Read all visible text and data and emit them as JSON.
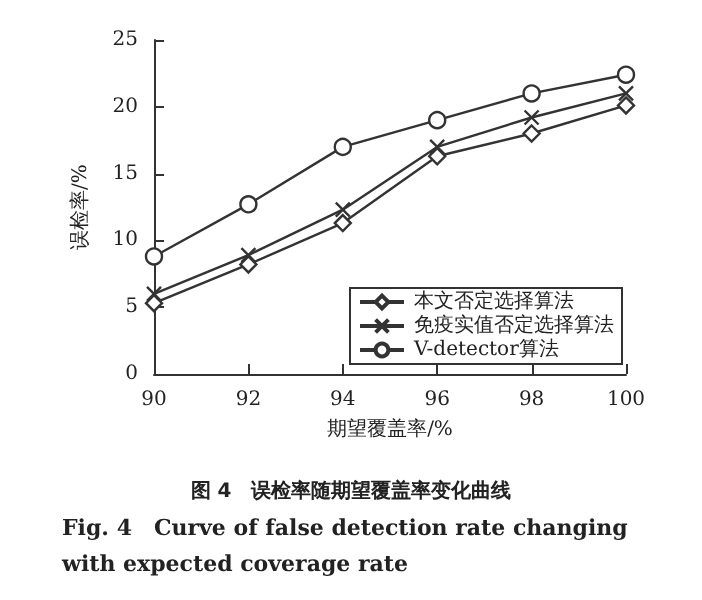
{
  "chart_data": {
    "type": "line",
    "title": "图 4　误检率随期望覆盖率变化曲线",
    "subtitle": "Fig. 4　Curve of false detection rate changing with expected coverage rate",
    "xlabel": "期望覆盖率/%",
    "ylabel": "误检率/%",
    "x": [
      90,
      92,
      94,
      96,
      98,
      100
    ],
    "series": [
      {
        "name": "本文否定选择算法",
        "color": "#333333",
        "marker": "diamond",
        "values": [
          5.3,
          8.2,
          11.3,
          16.3,
          18,
          20.1
        ]
      },
      {
        "name": "免疫实值否定选择算法",
        "color": "#333333",
        "marker": "cross",
        "values": [
          6,
          8.9,
          12.3,
          17,
          19.2,
          21
        ]
      },
      {
        "name": "V-detector算法",
        "color": "#333333",
        "marker": "circle",
        "values": [
          8.8,
          12.7,
          17,
          19,
          21,
          22.4
        ]
      }
    ],
    "xlim": [
      90,
      100
    ],
    "xticks": [
      90,
      92,
      94,
      96,
      98,
      100
    ],
    "ylim": [
      0,
      25
    ],
    "yticks": [
      0,
      5,
      10,
      15,
      20,
      25
    ],
    "grid": false,
    "legend": "bottom right",
    "line_style": "solid"
  }
}
